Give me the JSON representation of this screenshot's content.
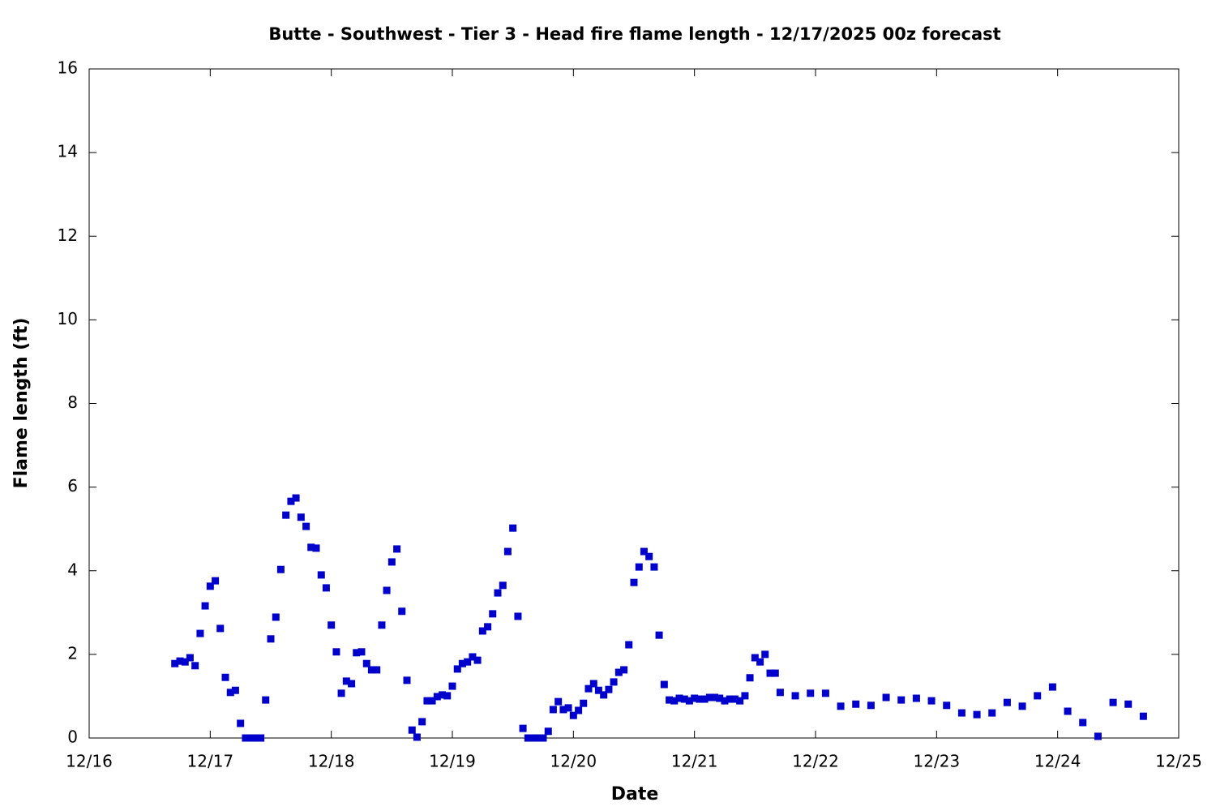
{
  "chart_data": {
    "type": "scatter",
    "title": "Butte - Southwest - Tier 3 - Head fire flame length - 12/17/2025 00z forecast",
    "xlabel": "Date",
    "ylabel": "Flame length (ft)",
    "xlim": [
      16,
      25
    ],
    "xticks": [
      {
        "value": 16,
        "label": "12/16"
      },
      {
        "value": 17,
        "label": "12/17"
      },
      {
        "value": 18,
        "label": "12/18"
      },
      {
        "value": 19,
        "label": "12/19"
      },
      {
        "value": 20,
        "label": "12/20"
      },
      {
        "value": 21,
        "label": "12/21"
      },
      {
        "value": 22,
        "label": "12/22"
      },
      {
        "value": 23,
        "label": "12/23"
      },
      {
        "value": 24,
        "label": "12/24"
      },
      {
        "value": 25,
        "label": "12/25"
      }
    ],
    "ylim": [
      0,
      16
    ],
    "yticks": [
      0,
      2,
      4,
      6,
      8,
      10,
      12,
      14,
      16
    ],
    "grid": false,
    "series": [
      {
        "color": "#0000cc",
        "x": [
          16.708,
          16.75,
          16.792,
          16.833,
          16.875,
          16.917,
          16.958,
          17,
          17.042,
          17.083,
          17.125,
          17.167,
          17.208,
          17.25,
          17.292,
          17.333,
          17.375,
          17.417,
          17.458,
          17.5,
          17.542,
          17.583,
          17.625,
          17.667,
          17.708,
          17.75,
          17.792,
          17.833,
          17.875,
          17.917,
          17.958,
          18,
          18.042,
          18.083,
          18.125,
          18.167,
          18.208,
          18.25,
          18.292,
          18.333,
          18.375,
          18.417,
          18.458,
          18.5,
          18.542,
          18.583,
          18.625,
          18.667,
          18.708,
          18.75,
          18.792,
          18.833,
          18.875,
          18.917,
          18.958,
          19,
          19.042,
          19.083,
          19.125,
          19.167,
          19.208,
          19.25,
          19.292,
          19.333,
          19.375,
          19.417,
          19.458,
          19.5,
          19.542,
          19.583,
          19.625,
          19.667,
          19.708,
          19.75,
          19.792,
          19.833,
          19.875,
          19.917,
          19.958,
          20,
          20.042,
          20.083,
          20.125,
          20.167,
          20.208,
          20.25,
          20.292,
          20.333,
          20.375,
          20.417,
          20.458,
          20.5,
          20.542,
          20.583,
          20.625,
          20.667,
          20.708,
          20.75,
          20.792,
          20.833,
          20.875,
          20.917,
          20.958,
          21,
          21.042,
          21.083,
          21.125,
          21.167,
          21.208,
          21.25,
          21.292,
          21.333,
          21.375,
          21.417,
          21.458,
          21.5,
          21.542,
          21.583,
          21.625,
          21.667,
          21.708,
          21.833,
          21.958,
          22.083,
          22.208,
          22.333,
          22.458,
          22.583,
          22.708,
          22.833,
          22.958,
          23.083,
          23.208,
          23.333,
          23.458,
          23.583,
          23.708,
          23.833,
          23.958,
          24.083,
          24.208,
          24.333,
          24.458,
          24.583,
          24.708
        ],
        "values": [
          1.78,
          1.84,
          1.82,
          1.92,
          1.73,
          2.5,
          3.16,
          3.63,
          3.76,
          2.62,
          1.45,
          1.09,
          1.14,
          0.35,
          0,
          0,
          0,
          0,
          0.91,
          2.37,
          2.89,
          4.03,
          5.33,
          5.66,
          5.74,
          5.28,
          5.06,
          4.56,
          4.54,
          3.9,
          3.59,
          2.7,
          2.06,
          1.07,
          1.36,
          1.3,
          2.04,
          2.06,
          1.78,
          1.63,
          1.63,
          2.7,
          3.53,
          4.21,
          4.52,
          3.03,
          1.38,
          0.19,
          0.02,
          0.39,
          0.89,
          0.89,
          0.99,
          1.03,
          1.01,
          1.24,
          1.65,
          1.78,
          1.82,
          1.94,
          1.86,
          2.56,
          2.66,
          2.97,
          3.47,
          3.65,
          4.46,
          5.02,
          2.91,
          0.23,
          0,
          0,
          0,
          0,
          0.16,
          0.68,
          0.87,
          0.68,
          0.72,
          0.54,
          0.66,
          0.83,
          1.18,
          1.3,
          1.14,
          1.03,
          1.16,
          1.34,
          1.57,
          1.63,
          2.23,
          3.72,
          4.09,
          4.46,
          4.34,
          4.09,
          2.46,
          1.28,
          0.91,
          0.89,
          0.95,
          0.93,
          0.89,
          0.95,
          0.93,
          0.93,
          0.97,
          0.97,
          0.95,
          0.89,
          0.93,
          0.93,
          0.89,
          1.01,
          1.44,
          1.92,
          1.82,
          2.0,
          1.55,
          1.55,
          1.09,
          1.01,
          1.07,
          1.07,
          0.76,
          0.81,
          0.78,
          0.97,
          0.91,
          0.95,
          0.89,
          0.78,
          0.6,
          0.56,
          0.6,
          0.85,
          0.76,
          1.01,
          1.22,
          0.64,
          0.37,
          0.04,
          0.85,
          0.81,
          0.52
        ]
      }
    ]
  }
}
